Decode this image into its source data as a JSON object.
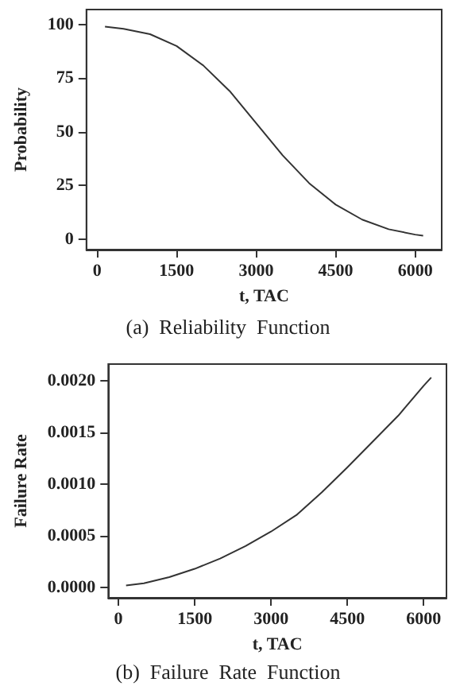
{
  "chart_data": [
    {
      "type": "line",
      "title": "(a)  Reliability  Function",
      "xlabel": "t, TAC",
      "ylabel": "Probability",
      "x": [
        150,
        500,
        1000,
        1500,
        2000,
        2500,
        3000,
        3500,
        4000,
        4500,
        5000,
        5500,
        6000,
        6150
      ],
      "series": [
        {
          "color": "#333333",
          "values": [
            99,
            98,
            95.5,
            90,
            81,
            69,
            54,
            39,
            26,
            16,
            9,
            4.5,
            2,
            1.5
          ]
        }
      ],
      "xlim": [
        -200,
        6500
      ],
      "xticks": [
        0,
        1500,
        3000,
        4500,
        6000
      ],
      "ylim": [
        -5,
        107
      ],
      "yticks": [
        0,
        25,
        50,
        75,
        100
      ],
      "marker": "none",
      "line_style": "solid"
    },
    {
      "type": "line",
      "title": "(b)  Failure  Rate  Function",
      "xlabel": "t, TAC",
      "ylabel": "Failure Rate",
      "x": [
        150,
        500,
        1000,
        1500,
        2000,
        2500,
        3000,
        3500,
        4000,
        4500,
        5000,
        5500,
        6000,
        6150
      ],
      "series": [
        {
          "color": "#333333",
          "values": [
            2e-05,
            4e-05,
            0.0001,
            0.00018,
            0.00028,
            0.0004,
            0.00054,
            0.0007,
            0.00092,
            0.00116,
            0.00141,
            0.00166,
            0.00195,
            0.00203
          ]
        }
      ],
      "xlim": [
        -200,
        6450
      ],
      "xticks": [
        0,
        1500,
        3000,
        4500,
        6000
      ],
      "ylim": [
        -0.0001,
        0.00216
      ],
      "yticks": [
        {
          "value": 0,
          "label": "0.0000"
        },
        {
          "value": 0.0005,
          "label": "0.0005"
        },
        {
          "value": 0.001,
          "label": "0.0010"
        },
        {
          "value": 0.0015,
          "label": "0.0015"
        },
        {
          "value": 0.002,
          "label": "0.0020"
        }
      ],
      "marker": "none",
      "line_style": "solid"
    }
  ]
}
